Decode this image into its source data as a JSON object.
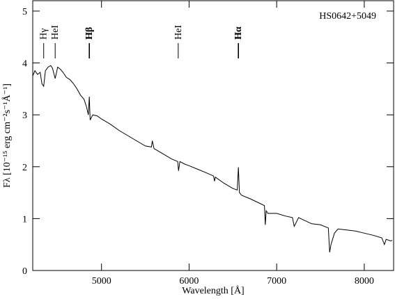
{
  "chart_data": {
    "type": "line",
    "label": "HS0642+5049",
    "xlabel": "Wavelength [Å]",
    "ylabel": "Fλ [10⁻¹⁵ erg cm⁻²s⁻¹Å⁻¹]",
    "xlim": [
      4215,
      8335
    ],
    "ylim": [
      0,
      5.2
    ],
    "xticks": [
      5000,
      6000,
      7000,
      8000
    ],
    "yticks": [
      0,
      1,
      2,
      3,
      4,
      5
    ],
    "lines": [
      {
        "label": "Hγ",
        "x": 4340,
        "bold": false
      },
      {
        "label": "HeI",
        "x": 4471,
        "bold": false
      },
      {
        "label": "Hβ",
        "x": 4861,
        "bold": true
      },
      {
        "label": "HeI",
        "x": 5876,
        "bold": false
      },
      {
        "label": "Hα",
        "x": 6563,
        "bold": true
      }
    ],
    "series": [
      {
        "color": "#000000",
        "x": [
          4215,
          4240,
          4270,
          4300,
          4320,
          4340,
          4360,
          4390,
          4420,
          4440,
          4471,
          4500,
          4530,
          4560,
          4600,
          4640,
          4680,
          4720,
          4760,
          4800,
          4830,
          4850,
          4861,
          4870,
          4900,
          4950,
          5000,
          5100,
          5200,
          5300,
          5400,
          5500,
          5570,
          5580,
          5600,
          5700,
          5800,
          5870,
          5880,
          5895,
          5950,
          6000,
          6100,
          6200,
          6280,
          6290,
          6300,
          6400,
          6500,
          6550,
          6563,
          6575,
          6600,
          6700,
          6800,
          6860,
          6870,
          6880,
          6900,
          7000,
          7100,
          7180,
          7200,
          7250,
          7300,
          7400,
          7500,
          7590,
          7605,
          7620,
          7660,
          7700,
          7800,
          7900,
          8000,
          8100,
          8200,
          8230,
          8250,
          8300,
          8320
        ],
        "values": [
          3.75,
          3.85,
          3.78,
          3.82,
          3.6,
          3.55,
          3.85,
          3.92,
          3.95,
          3.9,
          3.7,
          3.92,
          3.88,
          3.82,
          3.72,
          3.68,
          3.6,
          3.5,
          3.38,
          3.3,
          3.15,
          3.0,
          3.35,
          2.9,
          3.0,
          2.98,
          2.92,
          2.82,
          2.7,
          2.6,
          2.5,
          2.4,
          2.38,
          2.5,
          2.35,
          2.25,
          2.15,
          2.1,
          1.92,
          2.1,
          2.05,
          2.02,
          1.95,
          1.88,
          1.82,
          1.72,
          1.8,
          1.68,
          1.58,
          1.55,
          1.99,
          1.5,
          1.45,
          1.38,
          1.3,
          1.25,
          0.88,
          1.15,
          1.1,
          1.1,
          1.05,
          1.02,
          0.85,
          1.02,
          0.98,
          0.9,
          0.88,
          0.82,
          0.35,
          0.5,
          0.72,
          0.8,
          0.78,
          0.76,
          0.72,
          0.68,
          0.63,
          0.5,
          0.6,
          0.57,
          0.58
        ]
      }
    ]
  }
}
